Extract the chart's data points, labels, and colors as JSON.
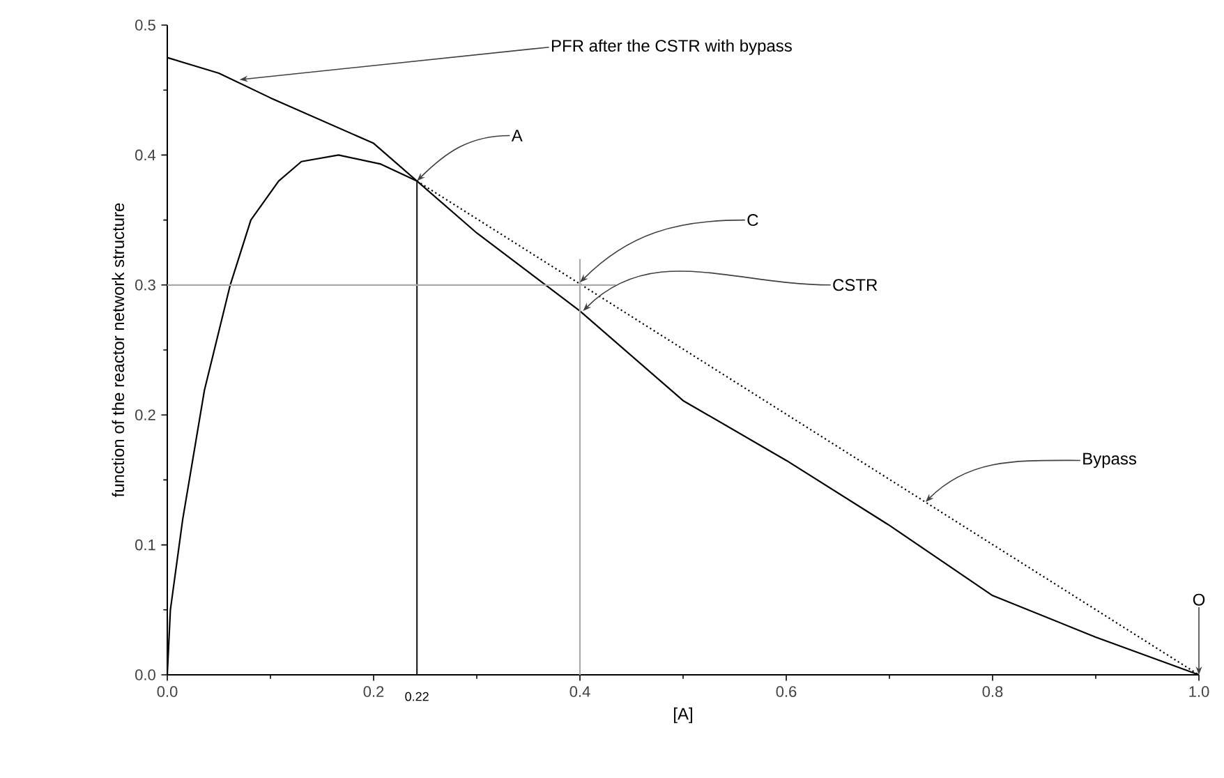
{
  "chart_data": {
    "type": "line",
    "xlabel": "[A]",
    "ylabel": "function of the reactor network structure",
    "xlim": [
      0,
      1
    ],
    "ylim": [
      0,
      0.5
    ],
    "xticks": [
      {
        "value": 0,
        "label": "0.0"
      },
      {
        "value": 0.2,
        "label": "0.2"
      },
      {
        "value": 0.4,
        "label": "0.4"
      },
      {
        "value": 0.6,
        "label": "0.6"
      },
      {
        "value": 0.8,
        "label": "0.8"
      },
      {
        "value": 1,
        "label": "1.0"
      }
    ],
    "yticks": [
      {
        "value": 0,
        "label": "0.0"
      },
      {
        "value": 0.1,
        "label": "0.1"
      },
      {
        "value": 0.2,
        "label": "0.2"
      },
      {
        "value": 0.3,
        "label": "0.3"
      },
      {
        "value": 0.4,
        "label": "0.4"
      },
      {
        "value": 0.5,
        "label": "0.5"
      }
    ],
    "series": [
      {
        "color": "#000000",
        "line_style": "solid",
        "x": [
          0,
          0.05,
          0.1,
          0.2,
          0.242,
          0.3,
          0.4,
          0.5,
          0.6,
          0.7,
          0.8,
          0.9,
          1
        ],
        "values": [
          0.475,
          0.463,
          0.444,
          0.409,
          0.38,
          0.34,
          0.28,
          0.211,
          0.165,
          0.115,
          0.061,
          0.029,
          0
        ]
      },
      {
        "color": "#000000",
        "line_style": "solid",
        "x": [
          0,
          0.003,
          0.015,
          0.036,
          0.061,
          0.081,
          0.108,
          0.13,
          0.166,
          0.207,
          0.242
        ],
        "values": [
          0,
          0.05,
          0.12,
          0.219,
          0.3,
          0.35,
          0.38,
          0.395,
          0.4,
          0.393,
          0.38
        ]
      },
      {
        "color": "#000000",
        "line_style": "dotted",
        "x": [
          0.242,
          1
        ],
        "values": [
          0.38,
          0
        ]
      },
      {
        "color": "#222222",
        "line_style": "solid",
        "x": [
          0.242,
          0.242
        ],
        "values": [
          0,
          0.38
        ]
      },
      {
        "color": "#aaaaaa",
        "line_style": "solid",
        "x": [
          0.4,
          0.4
        ],
        "values": [
          0,
          0.32
        ]
      },
      {
        "color": "#aaaaaa",
        "line_style": "solid",
        "x": [
          0,
          0.435
        ],
        "values": [
          0.3,
          0.3
        ]
      }
    ],
    "annotations": [
      {
        "text": "PFR after the CSTR with bypass",
        "x": 0.07,
        "y": 0.458
      },
      {
        "text": "A",
        "x": 0.242,
        "y": 0.38
      },
      {
        "text": "C",
        "x": 0.4,
        "y": 0.302
      },
      {
        "text": "CSTR",
        "x": 0.403,
        "y": 0.28
      },
      {
        "text": "Bypass",
        "x": 0.735,
        "y": 0.133
      },
      {
        "text": "O",
        "x": 1,
        "y": 0
      },
      {
        "text": "0.22",
        "x": 0.242,
        "y": 0
      }
    ]
  }
}
